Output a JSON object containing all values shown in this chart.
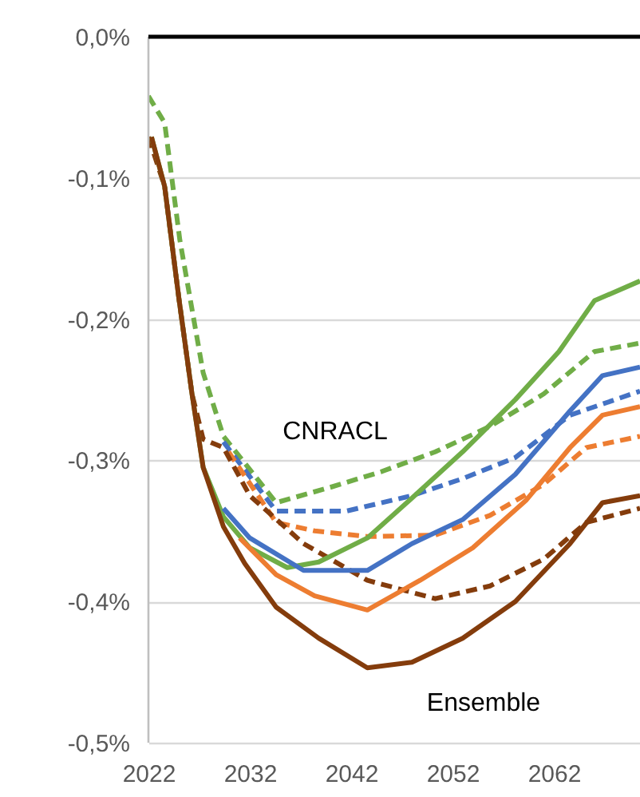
{
  "chart_data": {
    "type": "line",
    "xlim": [
      2022,
      2070.5
    ],
    "ylim": [
      -0.5,
      0
    ],
    "xticks": [
      2022,
      2032,
      2042,
      2052,
      2062
    ],
    "yticks": [
      {
        "value": 0,
        "label": "0,0%"
      },
      {
        "value": -0.1,
        "label": "-0,1%"
      },
      {
        "value": -0.2,
        "label": "-0,2%"
      },
      {
        "value": -0.3,
        "label": "-0,3%"
      },
      {
        "value": -0.4,
        "label": "-0,4%"
      },
      {
        "value": -0.5,
        "label": "-0,5%"
      }
    ],
    "grid": "y",
    "ref_lines": [
      {
        "axis": "y",
        "value": 0,
        "color": "#000000"
      }
    ],
    "annotations": [
      "CNRACL",
      "Ensemble"
    ],
    "series": [
      {
        "color": "#70ad47",
        "line_style": "dashed",
        "x": [
          2022,
          2023.6,
          2025.1,
          2027.4,
          2029.4,
          2034.6,
          2040,
          2045,
          2050.3,
          2055.7,
          2061,
          2066,
          2070.5
        ],
        "values": [
          -0.042,
          -0.061,
          -0.144,
          -0.238,
          -0.283,
          -0.33,
          -0.319,
          -0.308,
          -0.294,
          -0.276,
          -0.253,
          -0.223,
          -0.217
        ]
      },
      {
        "color": "#4472c4",
        "line_style": "dashed",
        "x": [
          2029.4,
          2034.6,
          2041.5,
          2048,
          2053,
          2058.2,
          2063.6,
          2070.5
        ],
        "values": [
          -0.287,
          -0.336,
          -0.336,
          -0.325,
          -0.313,
          -0.298,
          -0.268,
          -0.251
        ]
      },
      {
        "color": "#ed7d31",
        "line_style": "dashed",
        "x": [
          2029.9,
          2034.6,
          2038.4,
          2043.6,
          2050.3,
          2055.7,
          2061,
          2065.2,
          2070.5
        ],
        "values": [
          -0.294,
          -0.344,
          -0.35,
          -0.354,
          -0.353,
          -0.339,
          -0.317,
          -0.291,
          -0.283
        ]
      },
      {
        "color": "#843c0c",
        "line_style": "dashed",
        "x": [
          2022,
          2023.6,
          2025,
          2026.3,
          2027.4,
          2029.4,
          2032,
          2037.3,
          2043.6,
          2050.3,
          2055.7,
          2061,
          2065.2,
          2070.5
        ],
        "values": [
          -0.071,
          -0.106,
          -0.185,
          -0.253,
          -0.285,
          -0.291,
          -0.325,
          -0.359,
          -0.385,
          -0.398,
          -0.389,
          -0.37,
          -0.344,
          -0.334
        ]
      },
      {
        "color": "#70ad47",
        "line_style": "solid",
        "x": [
          2022.3,
          2023.6,
          2025,
          2026.3,
          2027.4,
          2029.4,
          2032,
          2035.7,
          2038.8,
          2043.6,
          2047.8,
          2053,
          2058.2,
          2062.5,
          2066,
          2070.5
        ],
        "values": [
          -0.071,
          -0.106,
          -0.185,
          -0.253,
          -0.305,
          -0.34,
          -0.362,
          -0.376,
          -0.372,
          -0.355,
          -0.328,
          -0.294,
          -0.257,
          -0.223,
          -0.187,
          -0.173
        ]
      },
      {
        "color": "#4472c4",
        "line_style": "solid",
        "x": [
          2029.4,
          2032,
          2037.3,
          2043.6,
          2048,
          2053,
          2058.2,
          2063.6,
          2066.8,
          2070.5
        ],
        "values": [
          -0.334,
          -0.355,
          -0.378,
          -0.378,
          -0.359,
          -0.342,
          -0.31,
          -0.265,
          -0.24,
          -0.234
        ]
      },
      {
        "color": "#ed7d31",
        "line_style": "solid",
        "x": [
          2031,
          2034.6,
          2038.4,
          2043.6,
          2048.8,
          2054,
          2059.3,
          2063.6,
          2066.8,
          2070.5
        ],
        "values": [
          -0.355,
          -0.381,
          -0.396,
          -0.406,
          -0.385,
          -0.362,
          -0.328,
          -0.291,
          -0.268,
          -0.262
        ]
      },
      {
        "color": "#843c0c",
        "line_style": "solid",
        "x": [
          2022.3,
          2023.6,
          2025,
          2026.3,
          2027.4,
          2029.4,
          2031.5,
          2034.6,
          2038.8,
          2043.6,
          2048,
          2053,
          2058.2,
          2063.6,
          2066.8,
          2070.5
        ],
        "values": [
          -0.071,
          -0.106,
          -0.185,
          -0.253,
          -0.305,
          -0.347,
          -0.373,
          -0.404,
          -0.426,
          -0.447,
          -0.443,
          -0.426,
          -0.4,
          -0.359,
          -0.33,
          -0.325
        ]
      }
    ]
  }
}
